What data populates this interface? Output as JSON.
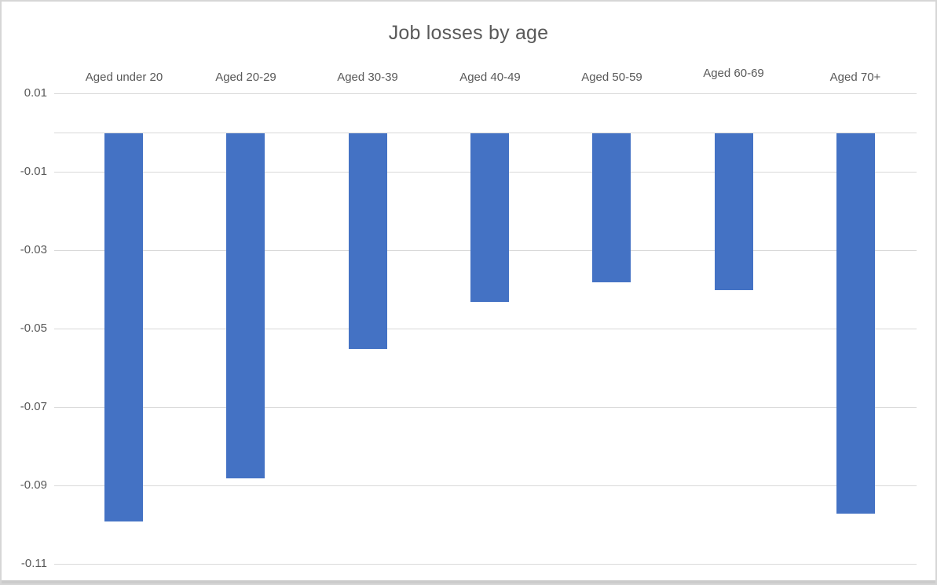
{
  "chart_data": {
    "type": "bar",
    "title": "Job losses by age",
    "categories": [
      "Aged under 20",
      "Aged 20-29",
      "Aged 30-39",
      "Aged 40-49",
      "Aged 50-59",
      "Aged 60-69",
      "Aged 70+"
    ],
    "values": [
      -0.099,
      -0.088,
      -0.055,
      -0.043,
      -0.038,
      -0.04,
      -0.097
    ],
    "y_ticks": [
      0.01,
      -0.01,
      -0.03,
      -0.05,
      -0.07,
      -0.09,
      -0.11
    ],
    "y_tick_labels": [
      "0.01",
      "-0.01",
      "-0.03",
      "-0.05",
      "-0.07",
      "-0.09",
      "-0.11"
    ],
    "ylim": [
      -0.115,
      0.013
    ],
    "grid": true,
    "legend": "none",
    "xlabel": "",
    "ylabel": "",
    "bar_color": "#4472C4",
    "gridline_color": "#D9D9D9",
    "text_color": "#595959"
  }
}
